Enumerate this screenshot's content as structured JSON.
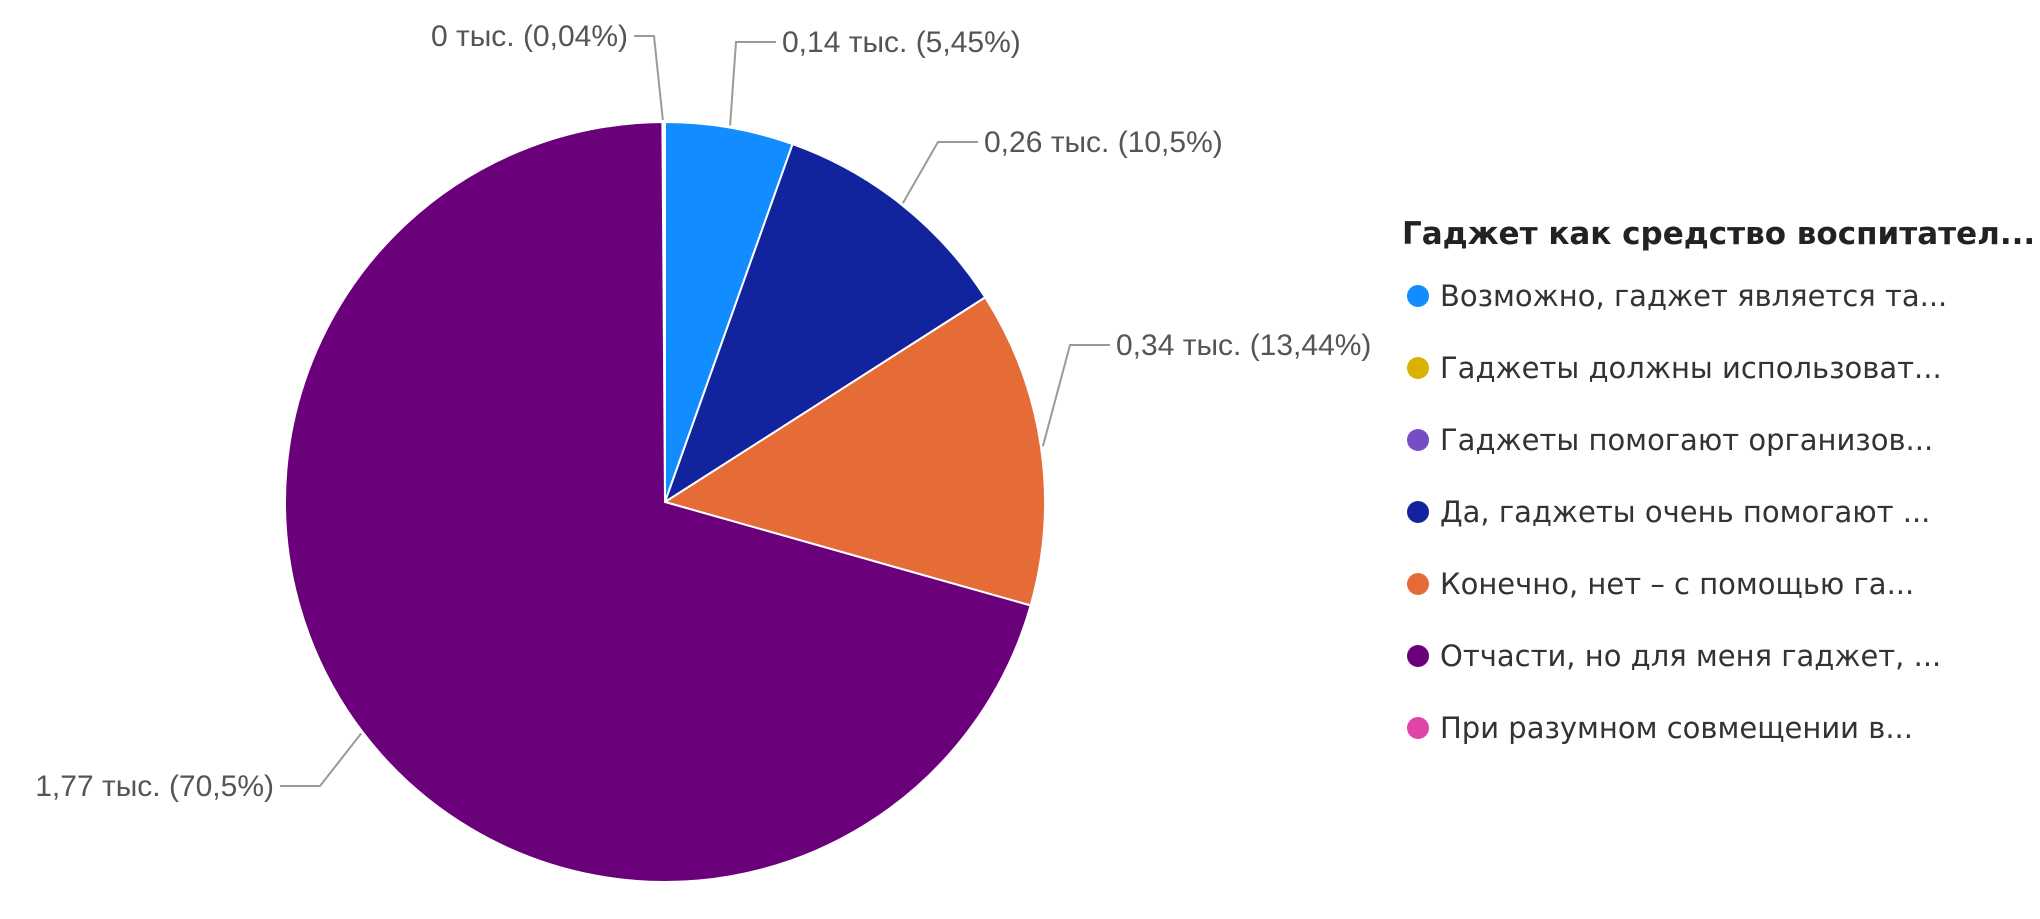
{
  "chart_data": {
    "type": "pie",
    "legend": {
      "title": "Гаджет как средство воспитател...",
      "position": "right"
    },
    "slices": [
      {
        "name": "Возможно, гаджет является та...",
        "value": 0.14,
        "percent": 5.45,
        "label": "0,14 тыс. (5,45%)",
        "color": "#118dff"
      },
      {
        "name": "Да, гаджеты очень помогают ...",
        "value": 0.26,
        "percent": 10.5,
        "label": "0,26 тыс. (10,5%)",
        "color": "#12239e"
      },
      {
        "name": "Конечно, нет – с помощью га...",
        "value": 0.34,
        "percent": 13.44,
        "label": "0,34 тыс. (13,44%)",
        "color": "#e66c37"
      },
      {
        "name": "Отчасти, но для меня гаджет, ...",
        "value": 1.77,
        "percent": 70.5,
        "label": "1,77 тыс. (70,5%)",
        "color": "#6b007b"
      },
      {
        "name": "Гаджеты должны использоват...",
        "value": 0,
        "percent": 0.04,
        "label": "0 тыс. (0,04%)",
        "color": "#d9b300"
      },
      {
        "name": "Гаджеты помогают организов...",
        "value": 0,
        "percent": 0,
        "label": "",
        "color": "#744ec2"
      },
      {
        "name": "При разумном совмещении в...",
        "value": 0,
        "percent": 0,
        "label": "",
        "color": "#e044a7"
      }
    ],
    "legend_order": [
      "Возможно, гаджет является та...",
      "Гаджеты должны использоват...",
      "Гаджеты помогают организов...",
      "Да, гаджеты очень помогают ...",
      "Конечно, нет – с помощью га...",
      "Отчасти, но для меня гаджет, ...",
      "При разумном совмещении в..."
    ]
  }
}
